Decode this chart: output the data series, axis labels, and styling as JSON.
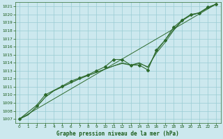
{
  "title": "Graphe pression niveau de la mer (hPa)",
  "background_color": "#cce8ee",
  "grid_color": "#99ccd4",
  "line_color": "#2d6a2d",
  "text_color": "#1a5c1a",
  "xlim": [
    -0.5,
    23.5
  ],
  "ylim": [
    1006.5,
    1021.5
  ],
  "xtick_labels": [
    "0",
    "1",
    "2",
    "3",
    "4",
    "5",
    "6",
    "7",
    "8",
    "9",
    "10",
    "11",
    "12",
    "13",
    "14",
    "15",
    "16",
    "17",
    "18",
    "19",
    "20",
    "21",
    "22",
    "23"
  ],
  "ytick_labels": [
    "1007",
    "1008",
    "1009",
    "1010",
    "1011",
    "1012",
    "1013",
    "1014",
    "1015",
    "1016",
    "1017",
    "1018",
    "1019",
    "1020",
    "1021"
  ],
  "ytick_vals": [
    1007,
    1008,
    1009,
    1010,
    1011,
    1012,
    1013,
    1014,
    1015,
    1016,
    1017,
    1018,
    1019,
    1020,
    1021
  ],
  "xtick_vals": [
    0,
    1,
    2,
    3,
    4,
    5,
    6,
    7,
    8,
    9,
    10,
    11,
    12,
    13,
    14,
    15,
    16,
    17,
    18,
    19,
    20,
    21,
    22,
    23
  ],
  "trend_x": [
    0,
    23
  ],
  "trend_y": [
    1007.0,
    1021.3
  ],
  "line1_x": [
    0,
    1,
    2,
    3,
    4,
    5,
    6,
    7,
    8,
    9,
    10,
    11,
    12,
    13,
    14,
    15,
    16,
    17,
    18,
    19,
    20,
    21,
    22,
    23
  ],
  "line1_y": [
    1007.0,
    1007.5,
    1008.5,
    1009.7,
    1010.5,
    1011.0,
    1011.5,
    1012.0,
    1012.4,
    1012.8,
    1013.2,
    1013.6,
    1013.9,
    1013.7,
    1013.9,
    1013.5,
    1015.2,
    1016.5,
    1018.0,
    1019.2,
    1019.9,
    1020.2,
    1020.8,
    1021.3
  ],
  "line2_x": [
    0,
    1,
    2,
    3,
    4,
    5,
    6,
    7,
    8,
    9,
    10,
    11,
    12,
    13,
    14,
    15,
    16,
    17,
    18,
    19,
    20,
    21,
    22,
    23
  ],
  "line2_y": [
    1007.0,
    1007.5,
    1008.5,
    1009.7,
    1010.5,
    1011.0,
    1011.5,
    1012.0,
    1012.4,
    1012.8,
    1013.2,
    1013.6,
    1014.0,
    1013.7,
    1014.0,
    1013.4,
    1015.4,
    1016.8,
    1018.1,
    1019.3,
    1019.9,
    1020.2,
    1020.8,
    1021.3
  ],
  "marker_x": [
    0,
    2,
    3,
    5,
    6,
    7,
    8,
    9,
    10,
    11,
    12,
    13,
    14,
    15,
    16,
    17,
    18,
    19,
    20,
    21,
    22,
    23
  ],
  "marker_y": [
    1007.0,
    1008.7,
    1010.0,
    1011.1,
    1011.7,
    1012.1,
    1012.5,
    1013.0,
    1013.5,
    1014.4,
    1014.4,
    1013.7,
    1013.7,
    1013.1,
    1015.6,
    1016.8,
    1018.4,
    1019.3,
    1020.0,
    1020.2,
    1020.9,
    1021.3
  ]
}
